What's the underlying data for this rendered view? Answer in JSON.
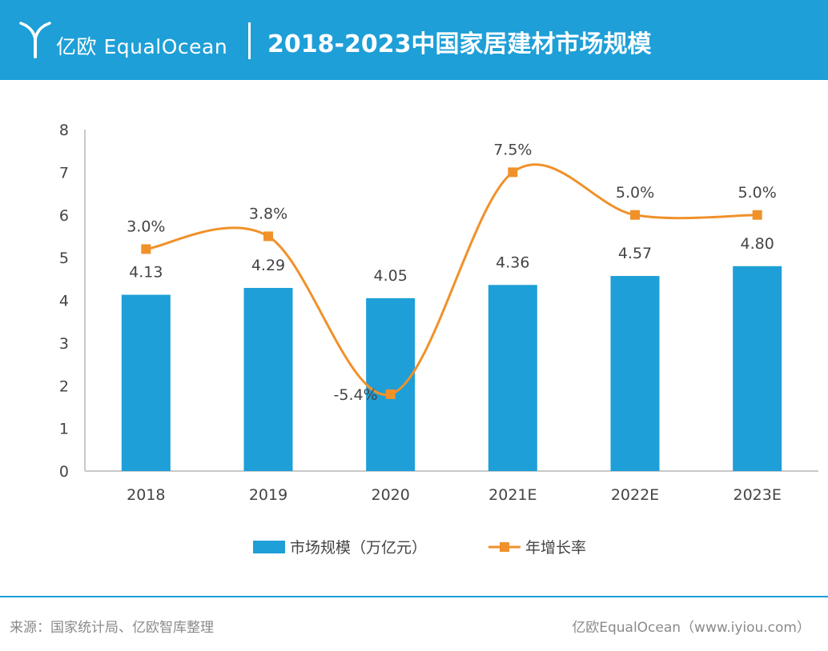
{
  "header": {
    "logo_text": "亿欧 EqualOcean",
    "title": "2018-2023中国家居建材市场规模"
  },
  "footer": {
    "source": "来源：国家统计局、亿欧智库整理",
    "brand": "亿欧EqualOcean（www.iyiou.com）"
  },
  "colors": {
    "bar": "#1e9fd7",
    "line": "#f0912a",
    "header": "#1e9fd7"
  },
  "chart_data": {
    "type": "bar",
    "categories": [
      "2018",
      "2019",
      "2020",
      "2021E",
      "2022E",
      "2023E"
    ],
    "ylim": [
      0,
      8
    ],
    "yticks": [
      "0",
      "1",
      "2",
      "3",
      "4",
      "5",
      "6",
      "7",
      "8"
    ],
    "grid": false,
    "legend_position": "bottom",
    "series": [
      {
        "name": "市场规模（万亿元）",
        "type": "bar",
        "values": [
          4.13,
          4.29,
          4.05,
          4.36,
          4.57,
          4.8
        ],
        "labels": [
          "4.13",
          "4.29",
          "4.05",
          "4.36",
          "4.57",
          "4.80"
        ]
      },
      {
        "name": "年增长率",
        "type": "line",
        "values": [
          3.0,
          3.8,
          -5.4,
          7.5,
          5.0,
          5.0
        ],
        "labels": [
          "3.0%",
          "3.8%",
          "-5.4%",
          "7.5%",
          "5.0%",
          "5.0%"
        ],
        "plot_positions": [
          5.2,
          5.5,
          1.8,
          7.0,
          6.0,
          6.0
        ]
      }
    ]
  }
}
